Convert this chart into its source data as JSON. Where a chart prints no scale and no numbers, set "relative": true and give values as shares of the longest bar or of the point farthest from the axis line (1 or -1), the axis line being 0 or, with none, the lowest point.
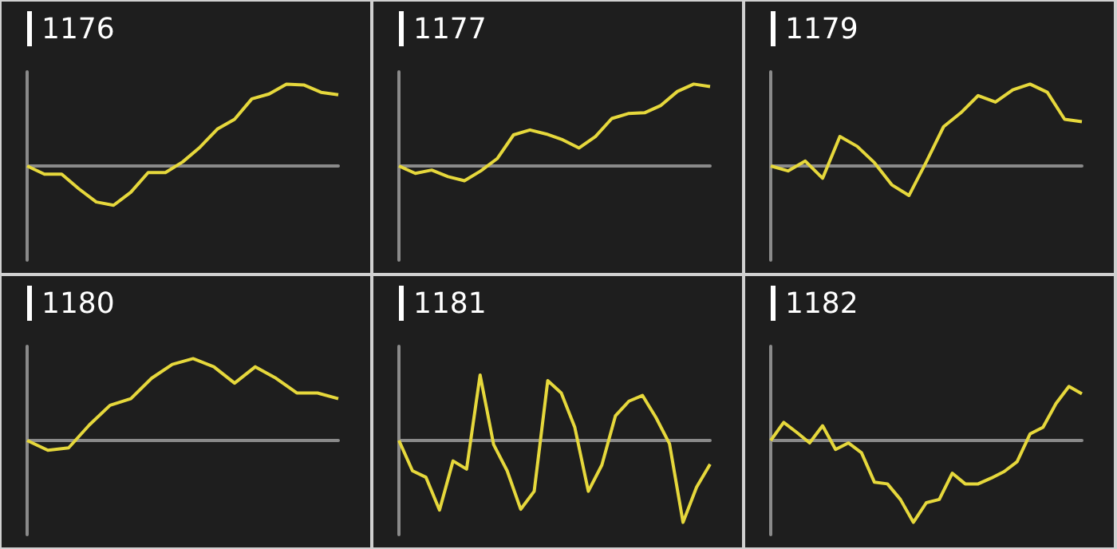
{
  "chart_data": [
    {
      "type": "line",
      "title": "1176",
      "relative": true,
      "grid": false,
      "marker": "none",
      "categories": [
        null,
        null,
        null,
        null,
        null,
        null,
        null,
        null,
        null,
        null,
        null,
        null,
        null,
        null,
        null,
        null,
        null,
        null,
        null
      ],
      "series": [
        {
          "color": "#e6d83c",
          "values": [
            0,
            -0.1,
            -0.1,
            -0.28,
            -0.44,
            -0.48,
            -0.32,
            -0.08,
            -0.08,
            0.05,
            0.23,
            0.45,
            0.57,
            0.82,
            0.88,
            1.0,
            0.99,
            0.9,
            0.87
          ]
        }
      ]
    },
    {
      "type": "line",
      "title": "1177",
      "relative": true,
      "grid": false,
      "marker": "none",
      "categories": [
        null,
        null,
        null,
        null,
        null,
        null,
        null,
        null,
        null,
        null,
        null,
        null,
        null,
        null,
        null,
        null,
        null,
        null,
        null,
        null
      ],
      "series": [
        {
          "color": "#e6d83c",
          "values": [
            0,
            -0.09,
            -0.05,
            -0.13,
            -0.18,
            -0.06,
            0.09,
            0.38,
            0.44,
            0.39,
            0.32,
            0.22,
            0.36,
            0.58,
            0.64,
            0.65,
            0.74,
            0.91,
            1.0,
            0.97
          ]
        }
      ]
    },
    {
      "type": "line",
      "title": "1179",
      "relative": true,
      "grid": false,
      "marker": "none",
      "categories": [
        null,
        null,
        null,
        null,
        null,
        null,
        null,
        null,
        null,
        null,
        null,
        null,
        null,
        null,
        null,
        null,
        null,
        null,
        null
      ],
      "series": [
        {
          "color": "#e6d83c",
          "values": [
            0,
            -0.06,
            0.06,
            -0.15,
            0.36,
            0.24,
            0.04,
            -0.23,
            -0.36,
            0.05,
            0.48,
            0.65,
            0.86,
            0.78,
            0.93,
            1.0,
            0.9,
            0.57,
            0.54
          ]
        }
      ]
    },
    {
      "type": "line",
      "title": "1180",
      "relative": true,
      "grid": false,
      "marker": "none",
      "categories": [
        null,
        null,
        null,
        null,
        null,
        null,
        null,
        null,
        null,
        null,
        null,
        null,
        null,
        null,
        null,
        null
      ],
      "series": [
        {
          "color": "#e6d83c",
          "values": [
            0,
            -0.12,
            -0.09,
            0.19,
            0.43,
            0.51,
            0.76,
            0.93,
            1.0,
            0.9,
            0.7,
            0.9,
            0.76,
            0.58,
            0.58,
            0.51
          ]
        }
      ]
    },
    {
      "type": "line",
      "title": "1181",
      "relative": true,
      "grid": false,
      "marker": "none",
      "categories": [
        null,
        null,
        null,
        null,
        null,
        null,
        null,
        null,
        null,
        null,
        null,
        null,
        null,
        null,
        null,
        null,
        null,
        null,
        null,
        null,
        null,
        null,
        null,
        null
      ],
      "series": [
        {
          "color": "#e6d83c",
          "values": [
            0,
            -0.37,
            -0.45,
            -0.85,
            -0.25,
            -0.35,
            0.8,
            -0.05,
            -0.37,
            -0.84,
            -0.62,
            0.73,
            0.58,
            0.16,
            -0.62,
            -0.3,
            0.3,
            0.48,
            0.55,
            0.28,
            -0.04,
            -1.0,
            -0.57,
            -0.29
          ]
        }
      ]
    },
    {
      "type": "line",
      "title": "1182",
      "relative": true,
      "grid": false,
      "marker": "none",
      "categories": [
        null,
        null,
        null,
        null,
        null,
        null,
        null,
        null,
        null,
        null,
        null,
        null,
        null,
        null,
        null,
        null,
        null,
        null,
        null,
        null,
        null,
        null,
        null,
        null,
        null
      ],
      "series": [
        {
          "color": "#e6d83c",
          "values": [
            0,
            0.22,
            0.1,
            -0.03,
            0.18,
            -0.11,
            -0.03,
            -0.15,
            -0.51,
            -0.53,
            -0.72,
            -1.0,
            -0.76,
            -0.72,
            -0.4,
            -0.53,
            -0.53,
            -0.46,
            -0.38,
            -0.26,
            0.08,
            0.16,
            0.45,
            0.66,
            0.57
          ]
        }
      ]
    }
  ]
}
